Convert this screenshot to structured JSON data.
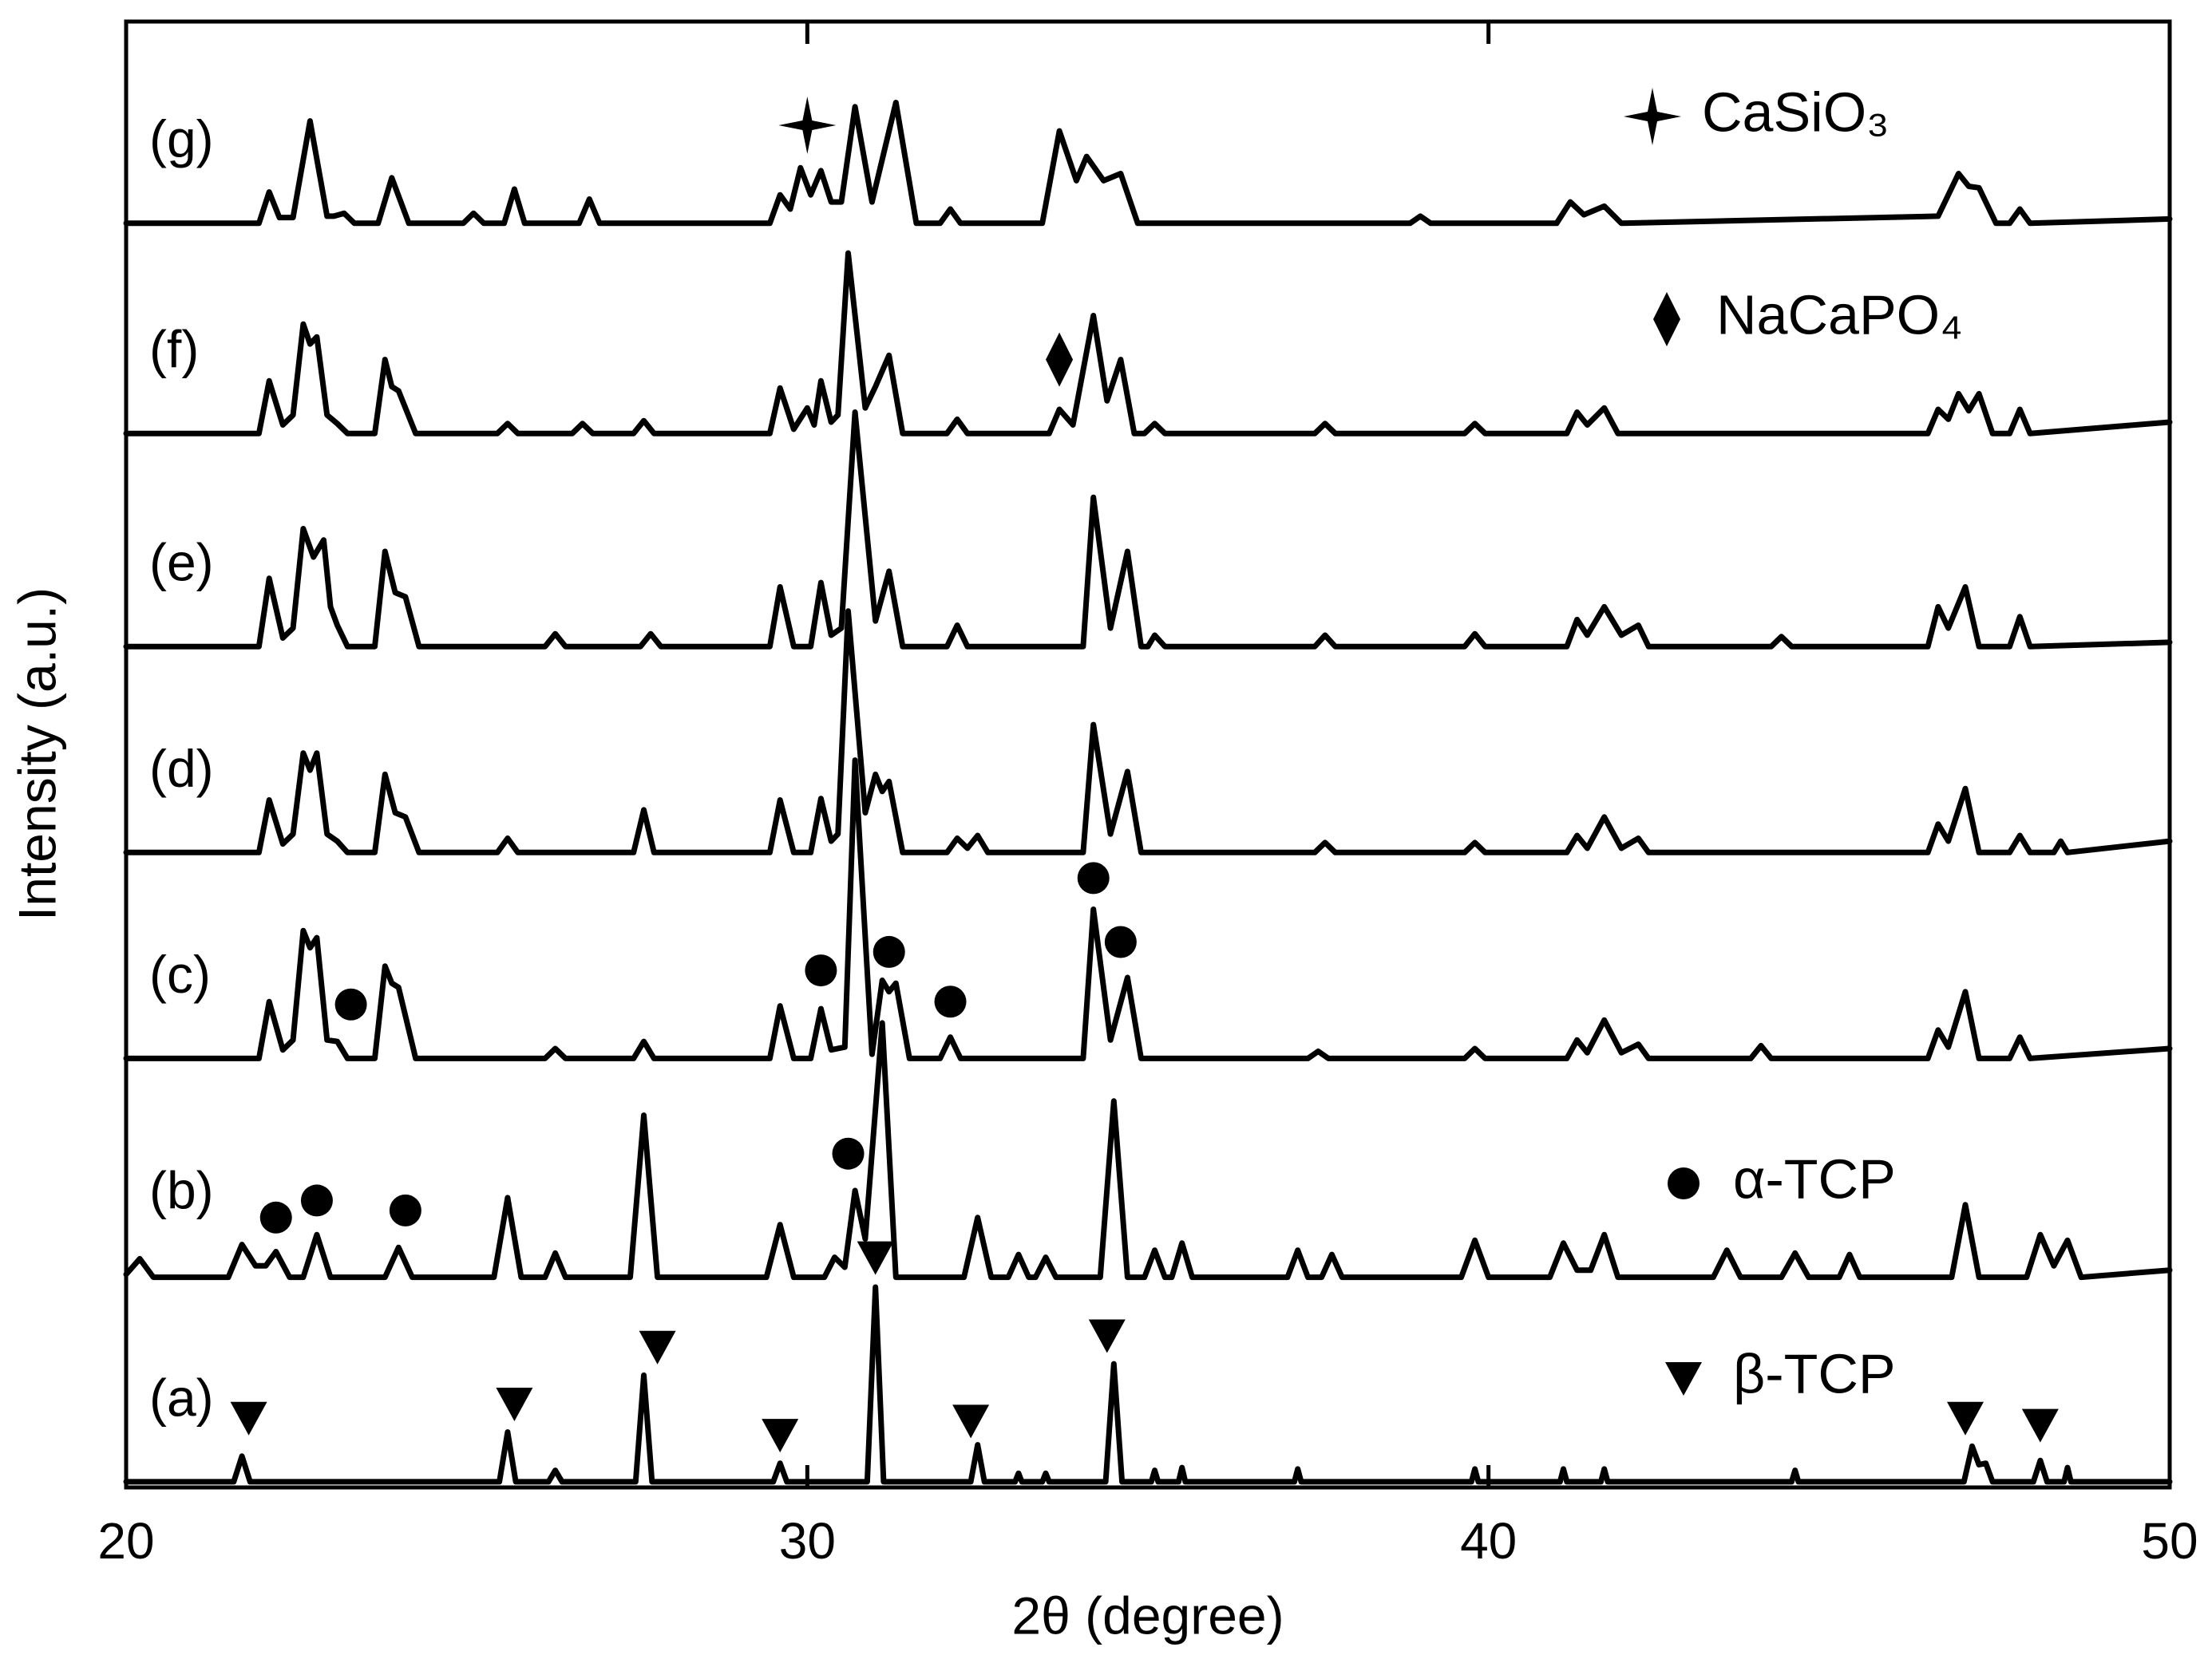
{
  "chart_data": {
    "type": "line",
    "xlabel": "2θ (degree)",
    "ylabel": "Intensity (a.u.)",
    "xlim": [
      20,
      50
    ],
    "xticks": [
      20,
      30,
      40,
      50
    ],
    "ylim": [
      0,
      103.2
    ],
    "grid": false,
    "series": [
      {
        "name": "(a)",
        "color": "#000000",
        "x": [
          20,
          21.58,
          21.7,
          21.82,
          25.48,
          25.6,
          25.72,
          26.2,
          26.3,
          26.4,
          27.48,
          27.6,
          27.72,
          29.5,
          29.6,
          29.7,
          30.88,
          31.0,
          31.12,
          32.4,
          32.5,
          32.6,
          33.05,
          33.1,
          33.15,
          33.45,
          33.5,
          33.55,
          34.38,
          34.5,
          34.62,
          35.05,
          35.1,
          35.15,
          35.45,
          35.5,
          35.55,
          37.15,
          37.2,
          37.25,
          39.75,
          39.8,
          39.85,
          41.05,
          41.1,
          41.15,
          41.65,
          41.7,
          41.75,
          44.45,
          44.5,
          44.55,
          46.98,
          47.1,
          47.2,
          47.3,
          47.4,
          48.0,
          48.1,
          48.2,
          48.45,
          48.5,
          48.55,
          50
        ],
        "values": [
          0.4,
          0.4,
          2.2,
          0.4,
          0.4,
          3.9,
          0.4,
          0.4,
          1.2,
          0.4,
          0.4,
          7.9,
          0.4,
          0.4,
          1.7,
          0.4,
          0.4,
          14.1,
          0.4,
          0.4,
          3.0,
          0.4,
          0.4,
          1.0,
          0.4,
          0.4,
          1.0,
          0.4,
          0.4,
          8.7,
          0.4,
          0.4,
          1.2,
          0.4,
          0.4,
          1.4,
          0.4,
          0.4,
          1.3,
          0.4,
          0.4,
          1.3,
          0.4,
          0.4,
          1.3,
          0.4,
          0.4,
          1.3,
          0.4,
          0.4,
          1.2,
          0.4,
          0.4,
          2.9,
          1.6,
          1.7,
          0.4,
          0.4,
          1.9,
          0.4,
          0.4,
          1.4,
          0.4,
          0.4
        ]
      },
      {
        "name": "(b)",
        "color": "#000000",
        "x": [
          20,
          20.2,
          20.4,
          21.5,
          21.7,
          21.9,
          22.05,
          22.2,
          22.4,
          22.6,
          22.8,
          23.0,
          23.8,
          24.0,
          24.2,
          25.4,
          25.6,
          25.8,
          26.15,
          26.3,
          26.45,
          27.4,
          27.6,
          27.8,
          29.4,
          29.6,
          29.8,
          30.25,
          30.4,
          30.55,
          30.7,
          30.85,
          31.1,
          31.3,
          32.3,
          32.5,
          32.7,
          32.95,
          33.1,
          33.25,
          33.35,
          33.5,
          33.65,
          34.3,
          34.5,
          34.7,
          34.95,
          35.1,
          35.25,
          35.35,
          35.5,
          35.65,
          37.05,
          37.2,
          37.35,
          37.55,
          37.7,
          37.85,
          39.6,
          39.8,
          40.0,
          40.9,
          41.1,
          41.3,
          41.5,
          41.7,
          41.9,
          43.3,
          43.5,
          43.7,
          44.3,
          44.5,
          44.7,
          45.15,
          45.3,
          45.45,
          46.8,
          47.0,
          47.2,
          47.9,
          48.1,
          48.3,
          48.5,
          48.7,
          50
        ],
        "values": [
          15.0,
          16.1,
          14.8,
          14.8,
          17.1,
          15.6,
          15.6,
          16.6,
          14.8,
          14.8,
          17.8,
          14.8,
          14.8,
          16.9,
          14.8,
          14.8,
          20.4,
          14.8,
          14.8,
          16.5,
          14.8,
          14.8,
          26.2,
          14.8,
          14.8,
          18.5,
          14.8,
          14.8,
          16.2,
          15.5,
          20.9,
          17.5,
          32.7,
          14.8,
          14.8,
          19.0,
          14.8,
          14.8,
          16.4,
          14.8,
          14.8,
          16.2,
          14.8,
          14.8,
          27.2,
          14.8,
          14.8,
          16.7,
          14.8,
          14.8,
          17.2,
          14.8,
          14.8,
          16.7,
          14.8,
          14.8,
          16.4,
          14.8,
          14.8,
          17.4,
          14.8,
          14.8,
          17.2,
          15.3,
          15.3,
          17.8,
          14.8,
          14.8,
          16.7,
          14.8,
          14.8,
          16.5,
          14.8,
          14.8,
          16.4,
          14.8,
          14.8,
          19.9,
          14.8,
          14.8,
          17.8,
          15.6,
          17.4,
          14.8,
          15.3
        ]
      },
      {
        "name": "(c)",
        "color": "#000000",
        "x": [
          20,
          21.95,
          22.1,
          22.3,
          22.45,
          22.6,
          22.7,
          22.8,
          22.95,
          23.1,
          23.25,
          23.65,
          23.8,
          23.9,
          24.0,
          24.25,
          26.15,
          26.3,
          26.45,
          27.45,
          27.6,
          27.75,
          29.45,
          29.6,
          29.8,
          30.05,
          30.2,
          30.35,
          30.55,
          30.7,
          30.95,
          31.1,
          31.2,
          31.3,
          31.5,
          31.95,
          32.1,
          32.25,
          34.05,
          34.2,
          34.45,
          34.7,
          34.9,
          37.35,
          37.5,
          37.65,
          39.65,
          39.8,
          39.95,
          41.15,
          41.3,
          41.45,
          41.7,
          41.95,
          42.2,
          42.35,
          43.85,
          44.0,
          44.15,
          46.45,
          46.6,
          46.75,
          47.0,
          47.2,
          47.65,
          47.8,
          47.95,
          50
        ],
        "values": [
          30.2,
          30.2,
          34.2,
          30.8,
          31.5,
          39.2,
          38.0,
          38.7,
          31.5,
          31.4,
          30.2,
          30.2,
          36.7,
          35.5,
          35.2,
          30.2,
          30.2,
          30.9,
          30.2,
          30.2,
          31.4,
          30.2,
          30.2,
          33.9,
          30.2,
          30.2,
          33.7,
          30.8,
          31.0,
          51.2,
          30.5,
          35.7,
          34.9,
          35.5,
          30.2,
          30.2,
          31.7,
          30.2,
          30.2,
          40.7,
          31.5,
          35.9,
          30.2,
          30.2,
          30.7,
          30.2,
          30.2,
          30.9,
          30.2,
          30.2,
          31.5,
          30.6,
          32.9,
          30.6,
          31.2,
          30.2,
          30.2,
          31.1,
          30.2,
          30.2,
          32.2,
          31.0,
          34.9,
          30.2,
          30.2,
          31.7,
          30.2,
          30.9
        ]
      },
      {
        "name": "(d)",
        "color": "#000000",
        "x": [
          20,
          21.95,
          22.1,
          22.3,
          22.45,
          22.6,
          22.7,
          22.8,
          22.95,
          23.1,
          23.25,
          23.65,
          23.8,
          23.95,
          24.1,
          24.3,
          25.45,
          25.6,
          25.75,
          27.45,
          27.6,
          27.75,
          29.45,
          29.6,
          29.8,
          30.05,
          30.2,
          30.35,
          30.45,
          30.6,
          30.85,
          31.0,
          31.1,
          31.2,
          31.4,
          32.05,
          32.2,
          32.35,
          32.5,
          32.65,
          34.05,
          34.2,
          34.45,
          34.7,
          34.9,
          37.45,
          37.6,
          37.75,
          39.65,
          39.8,
          39.95,
          41.15,
          41.3,
          41.45,
          41.7,
          41.95,
          42.2,
          42.35,
          46.45,
          46.6,
          46.75,
          47.0,
          47.2,
          47.65,
          47.8,
          47.95,
          48.3,
          48.4,
          48.5,
          50
        ],
        "values": [
          44.7,
          44.7,
          48.4,
          45.3,
          46.0,
          51.7,
          50.5,
          51.7,
          46.0,
          45.5,
          44.7,
          44.7,
          50.2,
          47.5,
          47.2,
          44.7,
          44.7,
          45.7,
          44.7,
          44.7,
          47.7,
          44.7,
          44.7,
          48.4,
          44.7,
          44.7,
          48.5,
          45.5,
          46.0,
          61.7,
          47.5,
          50.2,
          49.0,
          49.7,
          44.7,
          44.7,
          45.7,
          45.0,
          45.9,
          44.7,
          44.7,
          53.7,
          46.0,
          50.4,
          44.7,
          44.7,
          45.4,
          44.7,
          44.7,
          45.4,
          44.7,
          44.7,
          45.9,
          45.0,
          47.2,
          45.0,
          45.7,
          44.7,
          44.7,
          46.7,
          45.5,
          49.2,
          44.7,
          44.7,
          45.9,
          44.7,
          44.7,
          45.5,
          44.7,
          45.5
        ]
      },
      {
        "name": "(e)",
        "color": "#000000",
        "x": [
          20,
          21.95,
          22.1,
          22.3,
          22.45,
          22.6,
          22.75,
          22.9,
          23.0,
          23.1,
          23.25,
          23.65,
          23.8,
          23.95,
          24.1,
          24.3,
          26.15,
          26.3,
          26.45,
          27.55,
          27.7,
          27.85,
          29.45,
          29.6,
          29.8,
          30.05,
          30.2,
          30.35,
          30.5,
          30.7,
          31.0,
          31.2,
          31.4,
          32.05,
          32.2,
          32.35,
          34.05,
          34.2,
          34.45,
          34.7,
          34.9,
          35.0,
          35.1,
          35.25,
          37.45,
          37.6,
          37.75,
          39.65,
          39.8,
          39.95,
          41.15,
          41.3,
          41.45,
          41.7,
          41.95,
          42.2,
          42.35,
          44.15,
          44.3,
          44.45,
          46.45,
          46.6,
          46.75,
          47.0,
          47.2,
          47.65,
          47.8,
          47.95,
          50
        ],
        "values": [
          59.2,
          59.2,
          64.0,
          59.8,
          60.5,
          67.5,
          65.5,
          66.7,
          62.0,
          60.7,
          59.2,
          59.2,
          65.9,
          63.0,
          62.7,
          59.2,
          59.2,
          60.1,
          59.2,
          59.2,
          60.1,
          59.2,
          59.2,
          63.4,
          59.2,
          59.2,
          63.7,
          60.0,
          60.5,
          75.7,
          61.0,
          64.5,
          59.2,
          59.2,
          60.7,
          59.2,
          59.2,
          69.7,
          60.5,
          65.9,
          59.2,
          59.2,
          60.0,
          59.2,
          59.2,
          60.0,
          59.2,
          59.2,
          60.1,
          59.2,
          59.2,
          61.1,
          60.0,
          62.0,
          60.0,
          60.7,
          59.2,
          59.2,
          59.9,
          59.2,
          59.2,
          62.0,
          60.5,
          63.4,
          59.2,
          59.2,
          61.3,
          59.2,
          59.5
        ]
      },
      {
        "name": "(f)",
        "color": "#000000",
        "x": [
          20,
          21.95,
          22.1,
          22.3,
          22.45,
          22.6,
          22.7,
          22.8,
          22.95,
          23.1,
          23.25,
          23.65,
          23.8,
          23.9,
          24.0,
          24.25,
          25.45,
          25.6,
          25.75,
          26.55,
          26.7,
          26.85,
          27.45,
          27.6,
          27.75,
          29.45,
          29.6,
          29.8,
          30.0,
          30.1,
          30.2,
          30.35,
          30.45,
          30.6,
          30.85,
          31.0,
          31.2,
          31.4,
          32.05,
          32.2,
          32.35,
          33.55,
          33.7,
          33.9,
          34.2,
          34.4,
          34.6,
          34.8,
          34.95,
          35.1,
          35.25,
          37.45,
          37.6,
          37.75,
          39.65,
          39.8,
          39.95,
          41.15,
          41.3,
          41.45,
          41.7,
          41.9,
          46.45,
          46.6,
          46.75,
          46.9,
          47.05,
          47.2,
          47.4,
          47.65,
          47.8,
          47.95,
          50
        ],
        "values": [
          74.2,
          74.2,
          77.9,
          74.8,
          75.5,
          81.9,
          80.5,
          81.0,
          75.5,
          74.9,
          74.2,
          74.2,
          79.4,
          77.5,
          77.2,
          74.2,
          74.2,
          74.9,
          74.2,
          74.2,
          74.9,
          74.2,
          74.2,
          75.1,
          74.2,
          74.2,
          77.4,
          74.5,
          76.0,
          74.8,
          77.9,
          75.0,
          75.5,
          86.9,
          76.0,
          77.5,
          79.7,
          74.2,
          74.2,
          75.2,
          74.2,
          74.2,
          75.9,
          74.8,
          82.5,
          76.5,
          79.4,
          74.2,
          74.2,
          74.9,
          74.2,
          74.2,
          74.9,
          74.2,
          74.2,
          74.9,
          74.2,
          74.2,
          75.7,
          74.8,
          76.0,
          74.2,
          74.2,
          75.9,
          75.2,
          77.0,
          75.8,
          77.0,
          74.2,
          74.2,
          75.9,
          74.2,
          75.0
        ]
      },
      {
        "name": "(g)",
        "color": "#000000",
        "x": [
          20,
          21.95,
          22.1,
          22.25,
          22.45,
          22.7,
          22.95,
          23.05,
          23.2,
          23.35,
          23.7,
          23.9,
          24.15,
          24.95,
          25.1,
          25.25,
          25.55,
          25.7,
          25.85,
          26.65,
          26.8,
          26.95,
          29.45,
          29.6,
          29.75,
          29.9,
          30.05,
          30.2,
          30.35,
          30.5,
          30.7,
          30.95,
          31.3,
          31.6,
          31.95,
          32.1,
          32.25,
          33.45,
          33.7,
          33.95,
          34.1,
          34.35,
          34.6,
          34.85,
          38.85,
          39.0,
          39.15,
          41.0,
          41.2,
          41.4,
          41.7,
          41.95,
          46.6,
          46.9,
          47.05,
          47.2,
          47.45,
          47.65,
          47.8,
          47.95,
          50
        ],
        "values": [
          89.0,
          89.0,
          91.2,
          89.4,
          89.4,
          96.2,
          89.5,
          89.5,
          89.7,
          89.0,
          89.0,
          92.2,
          89.0,
          89.0,
          89.7,
          89.0,
          89.0,
          91.4,
          89.0,
          89.0,
          90.7,
          89.0,
          89.0,
          91.0,
          90.0,
          92.9,
          91.0,
          92.7,
          90.5,
          90.5,
          97.2,
          90.5,
          97.5,
          89.0,
          89.0,
          90.0,
          89.0,
          89.0,
          95.5,
          92.0,
          93.7,
          92.0,
          92.5,
          89.0,
          89.0,
          89.5,
          89.0,
          89.0,
          90.5,
          89.6,
          90.2,
          89.0,
          89.5,
          92.5,
          91.6,
          91.5,
          89.0,
          89.0,
          90.0,
          89.0,
          89.3
        ]
      }
    ],
    "markers": [
      {
        "symbol": "triangle",
        "x": [
          21.8,
          25.7,
          27.8,
          29.6,
          31.0,
          32.4,
          34.4,
          47.0,
          48.1
        ],
        "y": [
          4.9,
          5.9,
          9.9,
          3.7,
          16.2,
          4.7,
          10.7,
          4.9,
          4.4
        ]
      },
      {
        "symbol": "circle",
        "x": [
          22.2,
          22.8,
          24.1,
          30.6,
          23.3,
          30.2,
          31.2,
          32.1,
          34.2,
          34.6
        ],
        "y": [
          19.0,
          20.2,
          19.5,
          23.5,
          34.0,
          36.4,
          37.7,
          34.2,
          42.9,
          38.4
        ]
      },
      {
        "symbol": "diamond",
        "x": [
          33.7
        ],
        "y": [
          79.4
        ]
      },
      {
        "symbol": "star",
        "x": [
          30.0
        ],
        "y": [
          95.9
        ]
      }
    ],
    "legend": [
      {
        "symbol": "star",
        "label": "CaSiO₃"
      },
      {
        "symbol": "diamond",
        "label": "NaCaPO₄"
      },
      {
        "symbol": "circle",
        "label": "α-TCP"
      },
      {
        "symbol": "triangle",
        "label": "β-TCP"
      }
    ]
  }
}
